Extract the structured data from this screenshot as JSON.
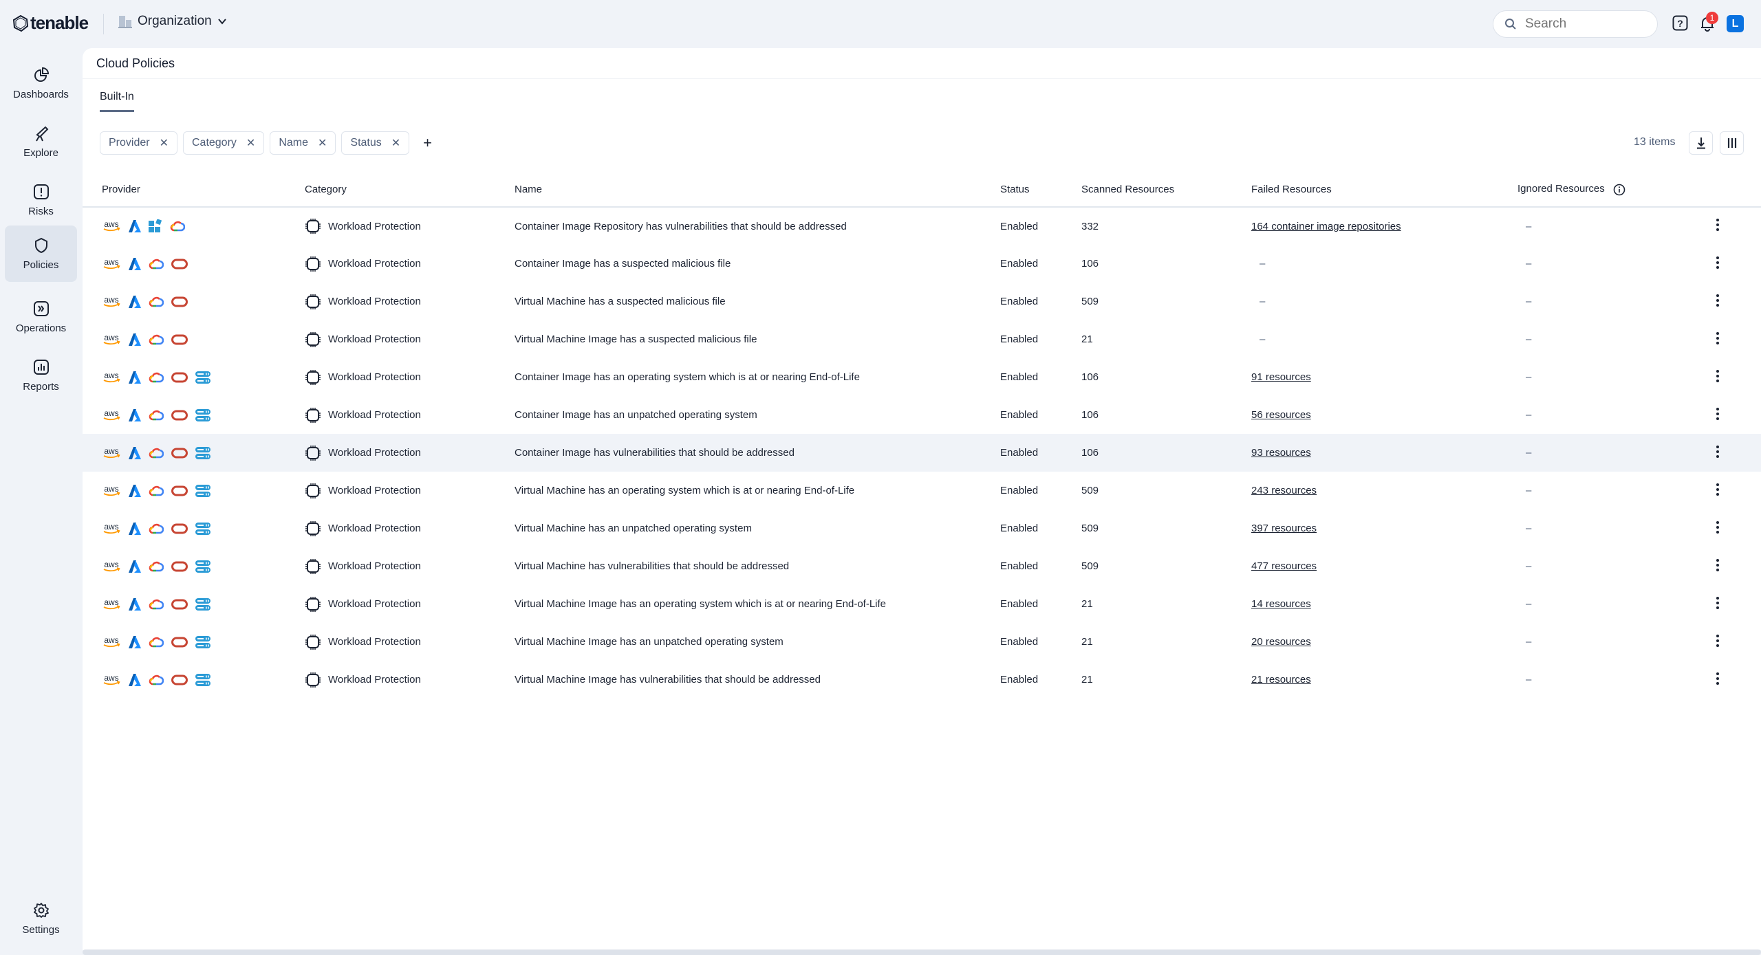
{
  "topbar": {
    "brand": "tenable",
    "org_label": "Organization",
    "search_placeholder": "Search",
    "notification_count": "1",
    "avatar_initial": "L"
  },
  "sidebar": {
    "items": [
      {
        "label": "Dashboards",
        "icon": "pie-chart-icon"
      },
      {
        "label": "Explore",
        "icon": "telescope-icon"
      },
      {
        "label": "Risks",
        "icon": "alert-square-icon"
      },
      {
        "label": "Policies",
        "icon": "shield-icon",
        "active": true
      },
      {
        "label": "Operations",
        "icon": "operations-icon"
      },
      {
        "label": "Reports",
        "icon": "bar-chart-icon"
      }
    ],
    "settings_label": "Settings"
  },
  "page": {
    "title": "Cloud Policies",
    "tab": "Built-In",
    "filters": [
      "Provider",
      "Category",
      "Name",
      "Status"
    ],
    "item_count": "13 items"
  },
  "table": {
    "columns": [
      "Provider",
      "Category",
      "Name",
      "Status",
      "Scanned Resources",
      "Failed Resources",
      "Ignored Resources"
    ],
    "rows": [
      {
        "providers": [
          "aws",
          "azure",
          "windows",
          "gcp"
        ],
        "category": "Workload Protection",
        "name": "Container Image Repository has vulnerabilities that should be addressed",
        "status": "Enabled",
        "scanned": "332",
        "failed": "164 container image repositories",
        "ignored": "–"
      },
      {
        "providers": [
          "aws",
          "azure",
          "gcp",
          "oracle"
        ],
        "category": "Workload Protection",
        "name": "Container Image has a suspected malicious file",
        "status": "Enabled",
        "scanned": "106",
        "failed": "–",
        "ignored": "–"
      },
      {
        "providers": [
          "aws",
          "azure",
          "gcp",
          "oracle"
        ],
        "category": "Workload Protection",
        "name": "Virtual Machine has a suspected malicious file",
        "status": "Enabled",
        "scanned": "509",
        "failed": "–",
        "ignored": "–"
      },
      {
        "providers": [
          "aws",
          "azure",
          "gcp",
          "oracle"
        ],
        "category": "Workload Protection",
        "name": "Virtual Machine Image has a suspected malicious file",
        "status": "Enabled",
        "scanned": "21",
        "failed": "–",
        "ignored": "–"
      },
      {
        "providers": [
          "aws",
          "azure",
          "gcp",
          "oracle",
          "server"
        ],
        "category": "Workload Protection",
        "name": "Container Image has an operating system which is at or nearing End-of-Life",
        "status": "Enabled",
        "scanned": "106",
        "failed": "91 resources",
        "ignored": "–"
      },
      {
        "providers": [
          "aws",
          "azure",
          "gcp",
          "oracle",
          "server"
        ],
        "category": "Workload Protection",
        "name": "Container Image has an unpatched operating system",
        "status": "Enabled",
        "scanned": "106",
        "failed": "56 resources",
        "ignored": "–"
      },
      {
        "providers": [
          "aws",
          "azure",
          "gcp",
          "oracle",
          "server"
        ],
        "category": "Workload Protection",
        "name": "Container Image has vulnerabilities that should be addressed",
        "status": "Enabled",
        "scanned": "106",
        "failed": "93 resources",
        "ignored": "–",
        "highlighted": true
      },
      {
        "providers": [
          "aws",
          "azure",
          "gcp",
          "oracle",
          "server"
        ],
        "category": "Workload Protection",
        "name": "Virtual Machine has an operating system which is at or nearing End-of-Life",
        "status": "Enabled",
        "scanned": "509",
        "failed": "243 resources",
        "ignored": "–"
      },
      {
        "providers": [
          "aws",
          "azure",
          "gcp",
          "oracle",
          "server"
        ],
        "category": "Workload Protection",
        "name": "Virtual Machine has an unpatched operating system",
        "status": "Enabled",
        "scanned": "509",
        "failed": "397 resources",
        "ignored": "–"
      },
      {
        "providers": [
          "aws",
          "azure",
          "gcp",
          "oracle",
          "server"
        ],
        "category": "Workload Protection",
        "name": "Virtual Machine has vulnerabilities that should be addressed",
        "status": "Enabled",
        "scanned": "509",
        "failed": "477 resources",
        "ignored": "–"
      },
      {
        "providers": [
          "aws",
          "azure",
          "gcp",
          "oracle",
          "server"
        ],
        "category": "Workload Protection",
        "name": "Virtual Machine Image has an operating system which is at or nearing End-of-Life",
        "status": "Enabled",
        "scanned": "21",
        "failed": "14 resources",
        "ignored": "–"
      },
      {
        "providers": [
          "aws",
          "azure",
          "gcp",
          "oracle",
          "server"
        ],
        "category": "Workload Protection",
        "name": "Virtual Machine Image has an unpatched operating system",
        "status": "Enabled",
        "scanned": "21",
        "failed": "20 resources",
        "ignored": "–"
      },
      {
        "providers": [
          "aws",
          "azure",
          "gcp",
          "oracle",
          "server"
        ],
        "category": "Workload Protection",
        "name": "Virtual Machine Image has vulnerabilities that should be addressed",
        "status": "Enabled",
        "scanned": "21",
        "failed": "21 resources",
        "ignored": "–"
      }
    ]
  },
  "colors": {
    "accent": "#0b72e0",
    "badge": "#ef3b3b",
    "row_highlight": "#f0f3f8",
    "oracle": "#c74634",
    "azure": "#0a6fd1"
  }
}
